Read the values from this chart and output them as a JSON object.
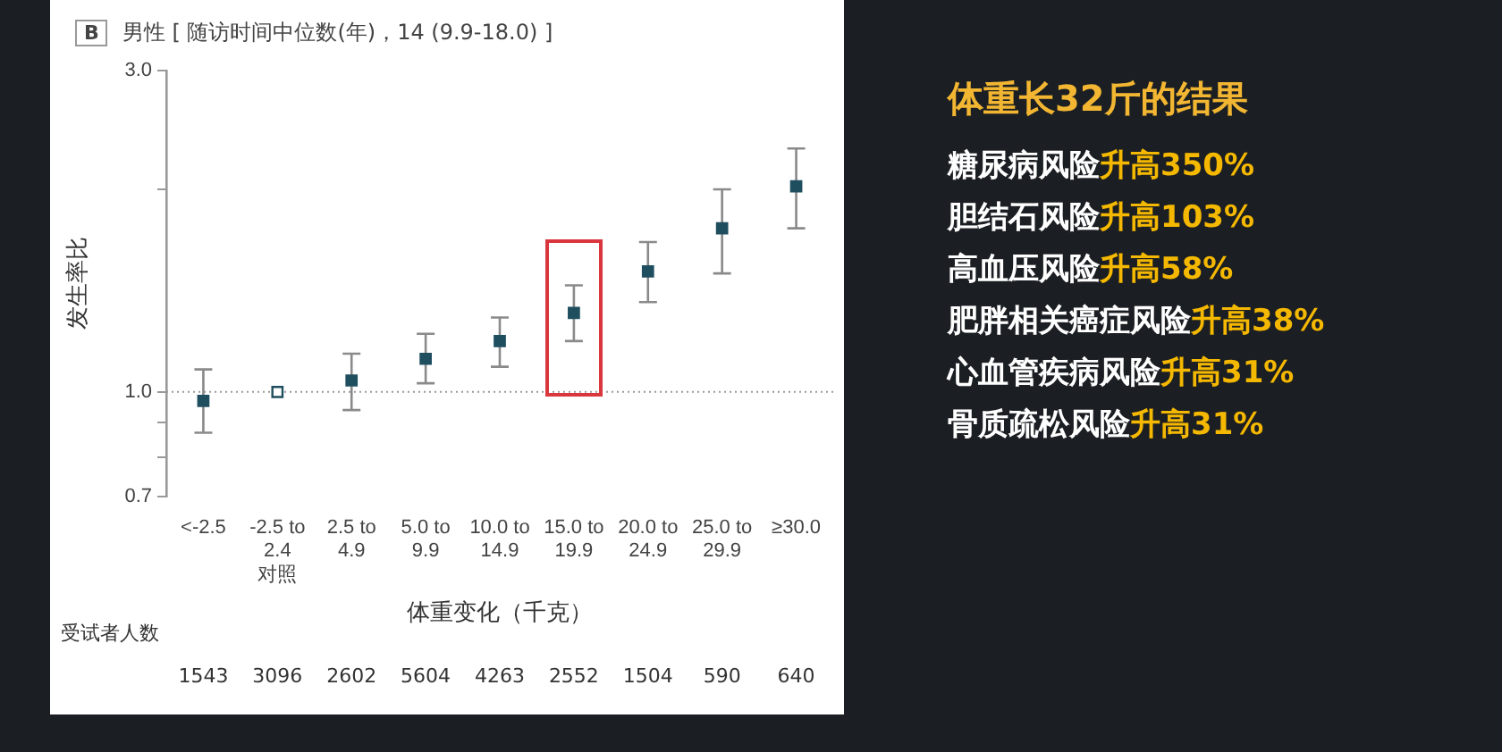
{
  "chart_data": {
    "type": "scatter",
    "title": "男性 [ 随访时间中位数(年)，14 (9.9-18.0) ]",
    "xlabel": "体重变化（千克）",
    "ylabel": "发生率比",
    "categories": [
      "<-2.5",
      "-2.5 to\n2.4\n对照",
      "2.5 to\n4.9",
      "5.0 to\n9.9",
      "10.0 to\n14.9",
      "15.0 to\n19.9",
      "20.0 to\n24.9",
      "25.0 to\n29.9",
      "≥30.0"
    ],
    "series": [
      {
        "color": "#1f4e5f",
        "values": [
          0.97,
          null,
          1.04,
          1.12,
          1.19,
          1.31,
          1.51,
          1.75,
          2.02
        ],
        "errors": [
          [
            0.87,
            1.08
          ],
          null,
          [
            0.94,
            1.14
          ],
          [
            1.03,
            1.22
          ],
          [
            1.09,
            1.29
          ],
          [
            1.19,
            1.44
          ],
          [
            1.36,
            1.67
          ],
          [
            1.5,
            2.0
          ],
          [
            1.75,
            2.3
          ]
        ]
      },
      {
        "color": "#ffffff",
        "values": [
          null,
          1.0,
          null,
          null,
          null,
          null,
          null,
          null,
          null
        ]
      }
    ],
    "log": true,
    "ylim": [
      0.7,
      3.0
    ],
    "yticks": [
      0.7,
      {
        "value": 0.8,
        "label": null
      },
      {
        "value": 0.9,
        "label": null
      },
      {
        "value": 1.0,
        "label": "1.0"
      },
      {
        "value": 2.0,
        "label": null
      },
      {
        "value": 3.0,
        "label": "3.0"
      }
    ],
    "ref_lines": [
      {
        "axis": "y",
        "value": 1.0,
        "label": null,
        "color": "#9a9a9a",
        "line_style": "dotted"
      }
    ],
    "grid": false,
    "legend": false,
    "marker": "square",
    "annotations": [
      "B",
      "受试者人数",
      "1543",
      "3096",
      "2602",
      "5604",
      "4263",
      "2552",
      "1504",
      "590",
      "640",
      "体重长32斤的结果",
      "糖尿病风险",
      "升高350%",
      "胆结石风险",
      "升高103%",
      "高血压风险",
      "升高58%",
      "肥胖相关癌症风险",
      "升高38%",
      "心血管疾病风险",
      "升高31%",
      "骨质疏松风险",
      "升高31%"
    ]
  }
}
